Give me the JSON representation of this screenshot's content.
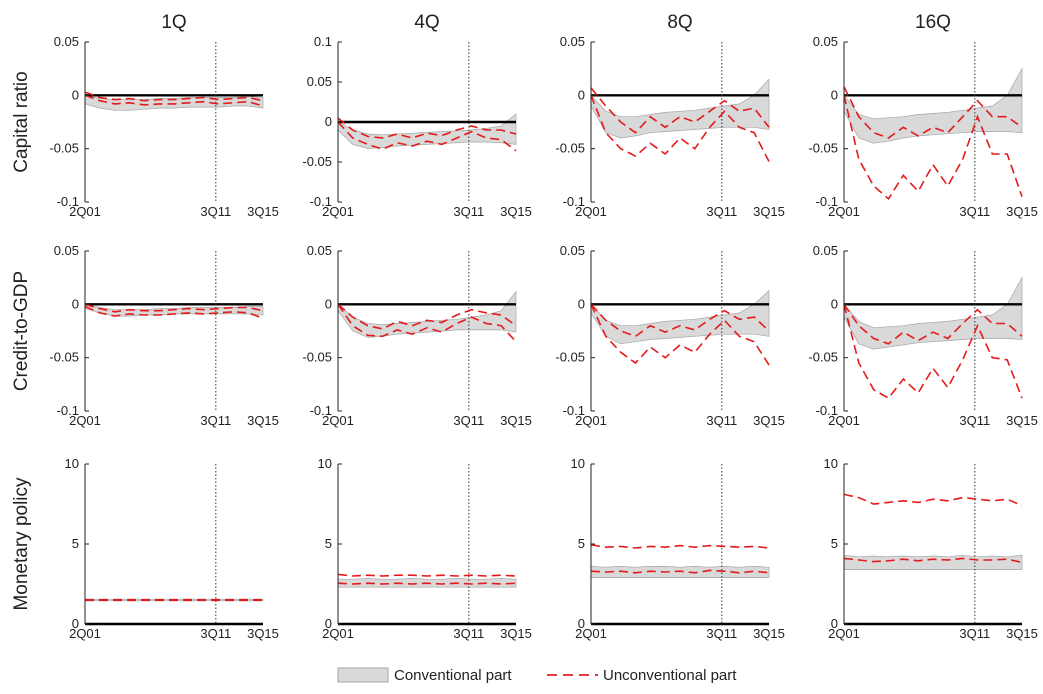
{
  "column_titles": [
    "1Q",
    "4Q",
    "8Q",
    "16Q"
  ],
  "row_labels": [
    "Capital ratio",
    "Credit-to-GDP",
    "Monetary policy"
  ],
  "x_ticks": [
    "2Q01",
    "3Q11",
    "3Q15"
  ],
  "legend": {
    "conventional": "Conventional part",
    "unconventional": "Unconventional part"
  },
  "colors": {
    "band": "#d9d9d9",
    "band_edge": "#a6a6a6",
    "dashed": "#e41a1c",
    "zero_line": "#000000"
  },
  "chart_data": {
    "type": "line",
    "grid": false,
    "legend_position": "bottom-center",
    "x_range_quarters": [
      "2Q01",
      "3Q15"
    ],
    "vertical_marker": "3Q11",
    "rows": [
      {
        "ylabel": "Capital ratio",
        "panels": [
          {
            "title": "1Q",
            "ylim": [
              -0.1,
              0.05
            ],
            "yticks": [
              "-0.1",
              "-0.05",
              "0",
              "0.05"
            ],
            "band_upper": [
              0,
              -0.003,
              -0.004,
              -0.004,
              -0.004,
              -0.003,
              -0.003,
              -0.002,
              -0.002,
              -0.002,
              -0.002,
              -0.001,
              -0.002
            ],
            "band_lower": [
              -0.008,
              -0.012,
              -0.014,
              -0.014,
              -0.013,
              -0.012,
              -0.012,
              -0.011,
              -0.011,
              -0.011,
              -0.01,
              -0.01,
              -0.012
            ],
            "dashed_upper": [
              0.003,
              -0.002,
              -0.004,
              -0.003,
              -0.005,
              -0.004,
              -0.004,
              -0.003,
              -0.002,
              -0.004,
              -0.003,
              -0.002,
              -0.005
            ],
            "dashed_lower": [
              0,
              -0.005,
              -0.008,
              -0.007,
              -0.009,
              -0.008,
              -0.008,
              -0.007,
              -0.006,
              -0.008,
              -0.007,
              -0.006,
              -0.01
            ]
          },
          {
            "title": "4Q",
            "ylim": [
              -0.1,
              0.1
            ],
            "yticks": [
              "-0.1",
              "-0.05",
              "0",
              "0.05",
              "0.1"
            ],
            "band_upper": [
              0,
              -0.01,
              -0.015,
              -0.016,
              -0.015,
              -0.014,
              -0.013,
              -0.012,
              -0.011,
              -0.01,
              -0.008,
              -0.005,
              0.01
            ],
            "band_lower": [
              -0.01,
              -0.028,
              -0.033,
              -0.032,
              -0.03,
              -0.029,
              -0.028,
              -0.027,
              -0.026,
              -0.025,
              -0.025,
              -0.026,
              -0.028
            ],
            "dashed_upper": [
              0.005,
              -0.01,
              -0.018,
              -0.02,
              -0.015,
              -0.02,
              -0.014,
              -0.017,
              -0.01,
              -0.005,
              -0.01,
              -0.01,
              -0.015
            ],
            "dashed_lower": [
              0,
              -0.02,
              -0.028,
              -0.034,
              -0.026,
              -0.03,
              -0.024,
              -0.028,
              -0.02,
              -0.012,
              -0.02,
              -0.022,
              -0.036
            ]
          },
          {
            "title": "8Q",
            "ylim": [
              -0.1,
              0.05
            ],
            "yticks": [
              "-0.1",
              "-0.05",
              "0",
              "0.05"
            ],
            "band_upper": [
              0,
              -0.015,
              -0.02,
              -0.02,
              -0.018,
              -0.016,
              -0.015,
              -0.014,
              -0.012,
              -0.01,
              -0.008,
              0,
              0.015
            ],
            "band_lower": [
              -0.01,
              -0.035,
              -0.04,
              -0.038,
              -0.035,
              -0.034,
              -0.033,
              -0.032,
              -0.031,
              -0.03,
              -0.03,
              -0.03,
              -0.032
            ],
            "dashed_upper": [
              0.007,
              -0.01,
              -0.025,
              -0.035,
              -0.02,
              -0.03,
              -0.02,
              -0.025,
              -0.015,
              -0.005,
              -0.015,
              -0.012,
              -0.03
            ],
            "dashed_lower": [
              0,
              -0.035,
              -0.05,
              -0.057,
              -0.045,
              -0.055,
              -0.04,
              -0.05,
              -0.03,
              -0.015,
              -0.03,
              -0.035,
              -0.062
            ]
          },
          {
            "title": "16Q",
            "ylim": [
              -0.1,
              0.05
            ],
            "yticks": [
              "-0.1",
              "-0.05",
              "0",
              "0.05"
            ],
            "band_upper": [
              0,
              -0.018,
              -0.022,
              -0.021,
              -0.02,
              -0.018,
              -0.017,
              -0.016,
              -0.014,
              -0.012,
              -0.01,
              0,
              0.025
            ],
            "band_lower": [
              -0.015,
              -0.04,
              -0.045,
              -0.043,
              -0.04,
              -0.038,
              -0.037,
              -0.036,
              -0.035,
              -0.034,
              -0.034,
              -0.034,
              -0.035
            ],
            "dashed_upper": [
              0.008,
              -0.02,
              -0.035,
              -0.04,
              -0.03,
              -0.038,
              -0.03,
              -0.035,
              -0.02,
              -0.005,
              -0.02,
              -0.02,
              -0.03
            ],
            "dashed_lower": [
              0,
              -0.06,
              -0.085,
              -0.097,
              -0.075,
              -0.09,
              -0.065,
              -0.085,
              -0.06,
              -0.02,
              -0.055,
              -0.055,
              -0.095
            ]
          }
        ]
      },
      {
        "ylabel": "Credit-to-GDP",
        "panels": [
          {
            "title": "1Q",
            "ylim": [
              -0.1,
              0.05
            ],
            "yticks": [
              "-0.1",
              "-0.05",
              "0",
              "0.05"
            ],
            "band_upper": [
              0,
              -0.003,
              -0.005,
              -0.005,
              -0.005,
              -0.004,
              -0.004,
              -0.003,
              -0.003,
              -0.003,
              -0.003,
              -0.002,
              -0.002
            ],
            "band_lower": [
              -0.004,
              -0.008,
              -0.011,
              -0.011,
              -0.01,
              -0.01,
              -0.009,
              -0.009,
              -0.009,
              -0.009,
              -0.009,
              -0.009,
              -0.01
            ],
            "dashed_upper": [
              0,
              -0.004,
              -0.007,
              -0.005,
              -0.006,
              -0.006,
              -0.005,
              -0.004,
              -0.005,
              -0.004,
              -0.003,
              -0.003,
              -0.006
            ],
            "dashed_lower": [
              -0.002,
              -0.008,
              -0.011,
              -0.009,
              -0.01,
              -0.01,
              -0.009,
              -0.008,
              -0.009,
              -0.008,
              -0.007,
              -0.008,
              -0.013
            ]
          },
          {
            "title": "4Q",
            "ylim": [
              -0.1,
              0.05
            ],
            "yticks": [
              "-0.1",
              "-0.05",
              "0",
              "0.05"
            ],
            "band_upper": [
              0,
              -0.012,
              -0.018,
              -0.019,
              -0.018,
              -0.017,
              -0.016,
              -0.015,
              -0.014,
              -0.012,
              -0.01,
              -0.006,
              0.012
            ],
            "band_lower": [
              -0.006,
              -0.025,
              -0.031,
              -0.03,
              -0.028,
              -0.027,
              -0.026,
              -0.025,
              -0.024,
              -0.024,
              -0.024,
              -0.024,
              -0.026
            ],
            "dashed_upper": [
              0,
              -0.012,
              -0.02,
              -0.023,
              -0.016,
              -0.02,
              -0.015,
              -0.017,
              -0.01,
              -0.005,
              -0.008,
              -0.01,
              -0.02
            ],
            "dashed_lower": [
              0,
              -0.02,
              -0.029,
              -0.03,
              -0.024,
              -0.028,
              -0.022,
              -0.026,
              -0.018,
              -0.012,
              -0.018,
              -0.02,
              -0.035
            ]
          },
          {
            "title": "8Q",
            "ylim": [
              -0.1,
              0.05
            ],
            "yticks": [
              "-0.1",
              "-0.05",
              "0",
              "0.05"
            ],
            "band_upper": [
              0,
              -0.015,
              -0.02,
              -0.02,
              -0.018,
              -0.016,
              -0.015,
              -0.014,
              -0.012,
              -0.01,
              -0.008,
              0,
              0.013
            ],
            "band_lower": [
              -0.008,
              -0.03,
              -0.037,
              -0.035,
              -0.033,
              -0.032,
              -0.031,
              -0.03,
              -0.029,
              -0.028,
              -0.028,
              -0.028,
              -0.03
            ],
            "dashed_upper": [
              0,
              -0.015,
              -0.025,
              -0.03,
              -0.02,
              -0.026,
              -0.02,
              -0.024,
              -0.014,
              -0.006,
              -0.014,
              -0.012,
              -0.025
            ],
            "dashed_lower": [
              0,
              -0.03,
              -0.045,
              -0.055,
              -0.04,
              -0.05,
              -0.038,
              -0.045,
              -0.028,
              -0.015,
              -0.03,
              -0.035,
              -0.057
            ]
          },
          {
            "title": "16Q",
            "ylim": [
              -0.1,
              0.05
            ],
            "yticks": [
              "-0.1",
              "-0.05",
              "0",
              "0.05"
            ],
            "band_upper": [
              0,
              -0.016,
              -0.022,
              -0.021,
              -0.02,
              -0.018,
              -0.017,
              -0.016,
              -0.014,
              -0.012,
              -0.01,
              0,
              0.025
            ],
            "band_lower": [
              -0.012,
              -0.037,
              -0.042,
              -0.04,
              -0.038,
              -0.036,
              -0.035,
              -0.034,
              -0.033,
              -0.032,
              -0.032,
              -0.032,
              -0.033
            ],
            "dashed_upper": [
              0,
              -0.02,
              -0.032,
              -0.037,
              -0.026,
              -0.034,
              -0.026,
              -0.032,
              -0.018,
              -0.005,
              -0.018,
              -0.018,
              -0.03
            ],
            "dashed_lower": [
              0,
              -0.055,
              -0.08,
              -0.088,
              -0.07,
              -0.083,
              -0.06,
              -0.078,
              -0.052,
              -0.02,
              -0.05,
              -0.052,
              -0.088
            ]
          }
        ]
      },
      {
        "ylabel": "Monetary policy",
        "panels": [
          {
            "title": "1Q",
            "ylim": [
              0,
              10
            ],
            "yticks": [
              "0",
              "5",
              "10"
            ],
            "band_upper": [
              1.55,
              1.55,
              1.55,
              1.55,
              1.55,
              1.55,
              1.55,
              1.55,
              1.55,
              1.55,
              1.55,
              1.55,
              1.55
            ],
            "band_lower": [
              1.45,
              1.45,
              1.45,
              1.45,
              1.45,
              1.45,
              1.45,
              1.45,
              1.45,
              1.45,
              1.45,
              1.45,
              1.45
            ],
            "dashed_upper": [
              1.52,
              1.52,
              1.52,
              1.52,
              1.52,
              1.52,
              1.52,
              1.52,
              1.52,
              1.52,
              1.52,
              1.52,
              1.52
            ],
            "dashed_lower": [
              1.48,
              1.48,
              1.48,
              1.48,
              1.48,
              1.48,
              1.48,
              1.48,
              1.48,
              1.48,
              1.48,
              1.48,
              1.48
            ]
          },
          {
            "title": "4Q",
            "ylim": [
              0,
              10
            ],
            "yticks": [
              "0",
              "5",
              "10"
            ],
            "band_upper": [
              2.8,
              2.8,
              2.85,
              2.8,
              2.8,
              2.85,
              2.8,
              2.8,
              2.85,
              2.8,
              2.8,
              2.85,
              2.8
            ],
            "band_lower": [
              2.3,
              2.3,
              2.3,
              2.3,
              2.3,
              2.3,
              2.3,
              2.3,
              2.3,
              2.3,
              2.3,
              2.3,
              2.3
            ],
            "dashed_upper": [
              3.1,
              3.0,
              3.05,
              3.0,
              3.05,
              3.05,
              3.0,
              3.05,
              3.0,
              3.05,
              3.0,
              3.05,
              3.0
            ],
            "dashed_lower": [
              2.55,
              2.5,
              2.55,
              2.5,
              2.55,
              2.5,
              2.55,
              2.5,
              2.55,
              2.5,
              2.55,
              2.5,
              2.55
            ]
          },
          {
            "title": "8Q",
            "ylim": [
              0,
              10
            ],
            "yticks": [
              "0",
              "5",
              "10"
            ],
            "band_upper": [
              3.6,
              3.55,
              3.6,
              3.55,
              3.6,
              3.6,
              3.55,
              3.6,
              3.55,
              3.6,
              3.55,
              3.6,
              3.55
            ],
            "band_lower": [
              2.9,
              2.9,
              2.9,
              2.9,
              2.9,
              2.9,
              2.9,
              2.9,
              2.9,
              2.9,
              2.9,
              2.9,
              2.9
            ],
            "dashed_upper": [
              4.95,
              4.8,
              4.85,
              4.75,
              4.85,
              4.8,
              4.9,
              4.8,
              4.9,
              4.85,
              4.8,
              4.85,
              4.75
            ],
            "dashed_lower": [
              3.3,
              3.25,
              3.3,
              3.2,
              3.3,
              3.25,
              3.3,
              3.2,
              3.35,
              3.3,
              3.2,
              3.3,
              3.2
            ]
          },
          {
            "title": "16Q",
            "ylim": [
              0,
              10
            ],
            "yticks": [
              "0",
              "5",
              "10"
            ],
            "band_upper": [
              4.3,
              4.2,
              4.25,
              4.2,
              4.25,
              4.2,
              4.25,
              4.2,
              4.3,
              4.2,
              4.25,
              4.2,
              4.3
            ],
            "band_lower": [
              3.4,
              3.4,
              3.4,
              3.4,
              3.4,
              3.4,
              3.4,
              3.4,
              3.4,
              3.4,
              3.4,
              3.4,
              3.4
            ],
            "dashed_upper": [
              8.1,
              7.9,
              7.5,
              7.6,
              7.7,
              7.6,
              7.8,
              7.7,
              7.9,
              7.8,
              7.7,
              7.8,
              7.4
            ],
            "dashed_lower": [
              4.1,
              4.0,
              3.9,
              3.95,
              4.05,
              3.95,
              4.05,
              4.0,
              4.1,
              4.0,
              4.0,
              4.05,
              3.85
            ]
          }
        ]
      }
    ]
  }
}
